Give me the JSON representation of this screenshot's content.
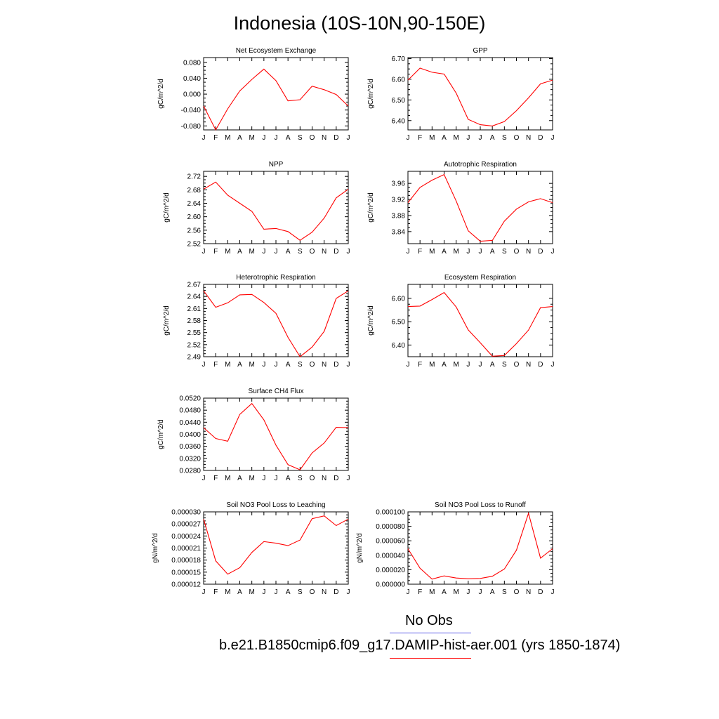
{
  "title": "Indonesia (10S-10N,90-150E)",
  "months": [
    "J",
    "F",
    "M",
    "A",
    "M",
    "J",
    "J",
    "A",
    "S",
    "O",
    "N",
    "D",
    "J"
  ],
  "colors": {
    "model": "#ff0000",
    "obs": "#5a5ae6"
  },
  "legend": {
    "obs_label": "No Obs",
    "model_label": "b.e21.B1850cmip6.f09_g17.DAMIP-hist-aer.001 (yrs 1850-1874)"
  },
  "chart_data": [
    {
      "type": "line",
      "title": "Net Ecosystem Exchange",
      "ylabel": "gC/m^2/d",
      "ylim": [
        -0.09,
        0.092
      ],
      "yticks": [
        -0.08,
        -0.04,
        0.0,
        0.04,
        0.08
      ],
      "yticklabels": [
        "-0.080",
        "-0.040",
        "0.000",
        "0.040",
        "0.080"
      ],
      "values": [
        -0.03,
        -0.09,
        -0.037,
        0.008,
        0.037,
        0.063,
        0.034,
        -0.017,
        -0.014,
        0.02,
        0.011,
        -0.001,
        -0.03
      ]
    },
    {
      "type": "line",
      "title": "GPP",
      "ylabel": "gC/m^2/d",
      "ylim": [
        6.355,
        6.705
      ],
      "yticks": [
        6.4,
        6.5,
        6.6,
        6.7
      ],
      "yticklabels": [
        "6.40",
        "6.50",
        "6.60",
        "6.70"
      ],
      "values": [
        6.596,
        6.654,
        6.634,
        6.625,
        6.533,
        6.406,
        6.38,
        6.374,
        6.395,
        6.448,
        6.51,
        6.578,
        6.596
      ]
    },
    {
      "type": "line",
      "title": "NPP",
      "ylabel": "gC/m^2/d",
      "ylim": [
        2.52,
        2.735
      ],
      "yticks": [
        2.52,
        2.56,
        2.6,
        2.64,
        2.68,
        2.72
      ],
      "yticklabels": [
        "2.52",
        "2.56",
        "2.60",
        "2.64",
        "2.68",
        "2.72"
      ],
      "values": [
        2.682,
        2.703,
        2.664,
        2.64,
        2.616,
        2.563,
        2.565,
        2.556,
        2.53,
        2.554,
        2.596,
        2.656,
        2.682
      ]
    },
    {
      "type": "line",
      "title": "Autotrophic Respiration",
      "ylabel": "gC/m^2/d",
      "ylim": [
        3.81,
        3.99
      ],
      "yticks": [
        3.84,
        3.88,
        3.92,
        3.96
      ],
      "yticklabels": [
        "3.84",
        "3.88",
        "3.92",
        "3.96"
      ],
      "values": [
        3.912,
        3.95,
        3.968,
        3.982,
        3.916,
        3.842,
        3.816,
        3.818,
        3.866,
        3.896,
        3.914,
        3.922,
        3.912
      ]
    },
    {
      "type": "line",
      "title": "Heterotrophic Respiration",
      "ylabel": "gC/m^2/d",
      "ylim": [
        2.49,
        2.67
      ],
      "yticks": [
        2.49,
        2.52,
        2.55,
        2.58,
        2.61,
        2.64,
        2.67
      ],
      "yticklabels": [
        "2.49",
        "2.52",
        "2.55",
        "2.58",
        "2.61",
        "2.64",
        "2.67"
      ],
      "values": [
        2.654,
        2.613,
        2.624,
        2.644,
        2.645,
        2.625,
        2.598,
        2.538,
        2.49,
        2.514,
        2.553,
        2.635,
        2.654
      ]
    },
    {
      "type": "line",
      "title": "Ecosystem Respiration",
      "ylabel": "gC/m^2/d",
      "ylim": [
        6.35,
        6.66
      ],
      "yticks": [
        6.4,
        6.5,
        6.6
      ],
      "yticklabels": [
        "6.40",
        "6.50",
        "6.60"
      ],
      "values": [
        6.565,
        6.567,
        6.595,
        6.625,
        6.563,
        6.465,
        6.41,
        6.352,
        6.355,
        6.406,
        6.464,
        6.56,
        6.565
      ]
    },
    {
      "type": "line",
      "title": "Surface CH4 Flux",
      "ylabel": "gC/m^2/d",
      "ylim": [
        0.028,
        0.052
      ],
      "yticks": [
        0.028,
        0.032,
        0.036,
        0.04,
        0.044,
        0.048,
        0.052
      ],
      "yticklabels": [
        "0.0280",
        "0.0320",
        "0.0360",
        "0.0400",
        "0.0440",
        "0.0480",
        "0.0520"
      ],
      "values": [
        0.0422,
        0.0386,
        0.0377,
        0.0466,
        0.0502,
        0.0448,
        0.0364,
        0.0299,
        0.0282,
        0.0338,
        0.0371,
        0.0423,
        0.0422
      ]
    },
    {
      "type": "line",
      "title": "Soil NO3 Pool Loss to Leaching",
      "ylabel": "gN/m^2/d",
      "ylim": [
        1.2e-05,
        3e-05
      ],
      "yticks": [
        1.2e-05,
        1.5e-05,
        1.8e-05,
        2.1e-05,
        2.4e-05,
        2.7e-05,
        3e-05
      ],
      "yticklabels": [
        "0.000012",
        "0.000015",
        "0.000018",
        "0.000021",
        "0.000024",
        "0.000027",
        "0.000030"
      ],
      "values": [
        2.82e-05,
        1.78e-05,
        1.45e-05,
        1.61e-05,
        1.99e-05,
        2.26e-05,
        2.22e-05,
        2.16e-05,
        2.3e-05,
        2.83e-05,
        2.9e-05,
        2.66e-05,
        2.82e-05
      ]
    },
    {
      "type": "line",
      "title": "Soil NO3 Pool Loss to Runoff",
      "ylabel": "gN/m^2/d",
      "ylim": [
        0.0,
        0.0001
      ],
      "yticks": [
        0.0,
        2e-05,
        4e-05,
        6e-05,
        8e-05,
        0.0001
      ],
      "yticklabels": [
        "0.000000",
        "0.000020",
        "0.000040",
        "0.000060",
        "0.000080",
        "0.000100"
      ],
      "values": [
        4.9e-05,
        2.2e-05,
        7e-06,
        1.15e-05,
        8.5e-06,
        7.5e-06,
        8e-06,
        1.1e-05,
        2.1e-05,
        4.7e-05,
        9.8e-05,
        3.6e-05,
        4.9e-05
      ]
    }
  ]
}
